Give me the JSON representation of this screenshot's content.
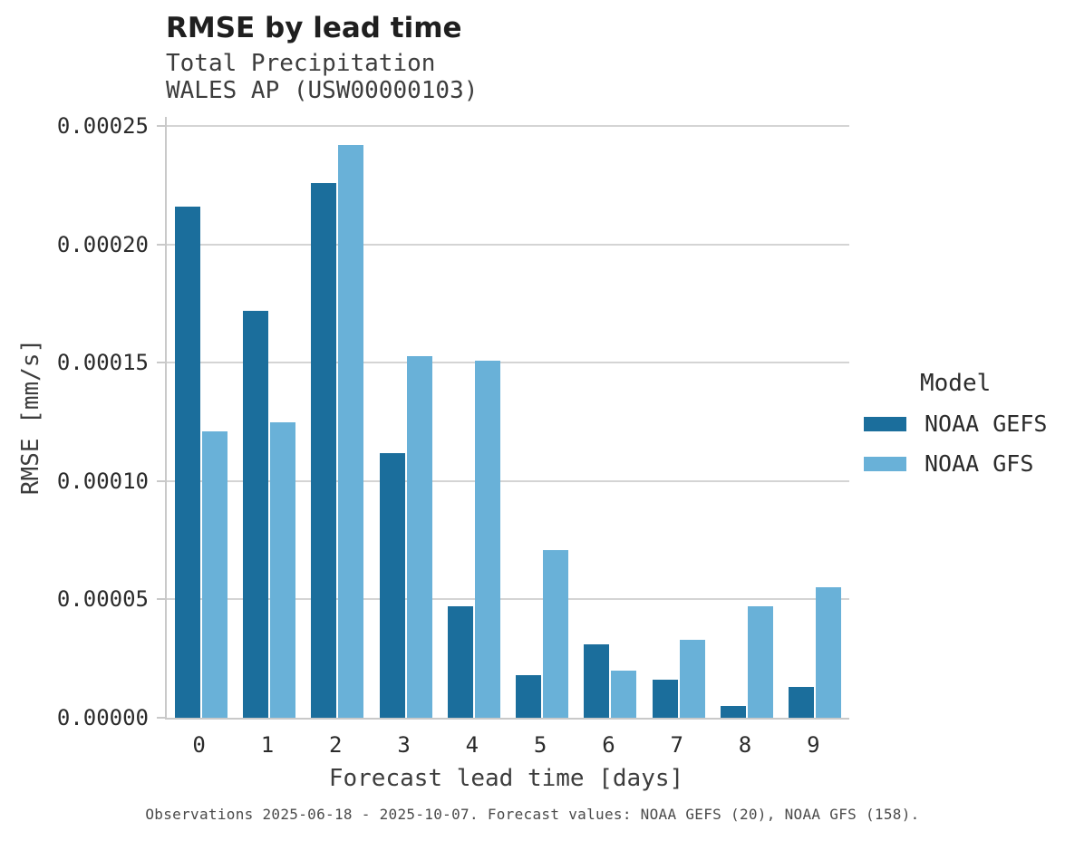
{
  "header": {
    "title": "RMSE by lead time",
    "subtitle1": "Total Precipitation",
    "subtitle2": "WALES AP (USW00000103)"
  },
  "chart_data": {
    "type": "bar",
    "title": "RMSE by lead time",
    "subtitle": [
      "Total Precipitation",
      "WALES AP (USW00000103)"
    ],
    "categories": [
      "0",
      "1",
      "2",
      "3",
      "4",
      "5",
      "6",
      "7",
      "8",
      "9"
    ],
    "series": [
      {
        "name": "NOAA GEFS",
        "color": "#1b6e9c",
        "values": [
          0.000216,
          0.000172,
          0.000226,
          0.000112,
          4.7e-05,
          1.8e-05,
          3.1e-05,
          1.6e-05,
          5e-06,
          1.3e-05
        ]
      },
      {
        "name": "NOAA GFS",
        "color": "#69b1d8",
        "values": [
          0.000121,
          0.000125,
          0.000242,
          0.000153,
          0.000151,
          7.1e-05,
          2e-05,
          3.3e-05,
          4.7e-05,
          5.5e-05
        ]
      }
    ],
    "xlabel": "Forecast lead time [days]",
    "ylabel": "RMSE [mm/s]",
    "ylim": [
      0,
      0.000254
    ],
    "yticks": [
      {
        "value": 0.0,
        "label": "0.00000"
      },
      {
        "value": 5e-05,
        "label": "0.00005"
      },
      {
        "value": 0.0001,
        "label": "0.00010"
      },
      {
        "value": 0.00015,
        "label": "0.00015"
      },
      {
        "value": 0.0002,
        "label": "0.00020"
      },
      {
        "value": 0.00025,
        "label": "0.00025"
      }
    ],
    "grid": true,
    "legend": {
      "title": "Model",
      "position": "right"
    }
  },
  "caption": "Observations 2025-06-18 - 2025-10-07. Forecast values: NOAA GEFS (20), NOAA GFS (158)."
}
